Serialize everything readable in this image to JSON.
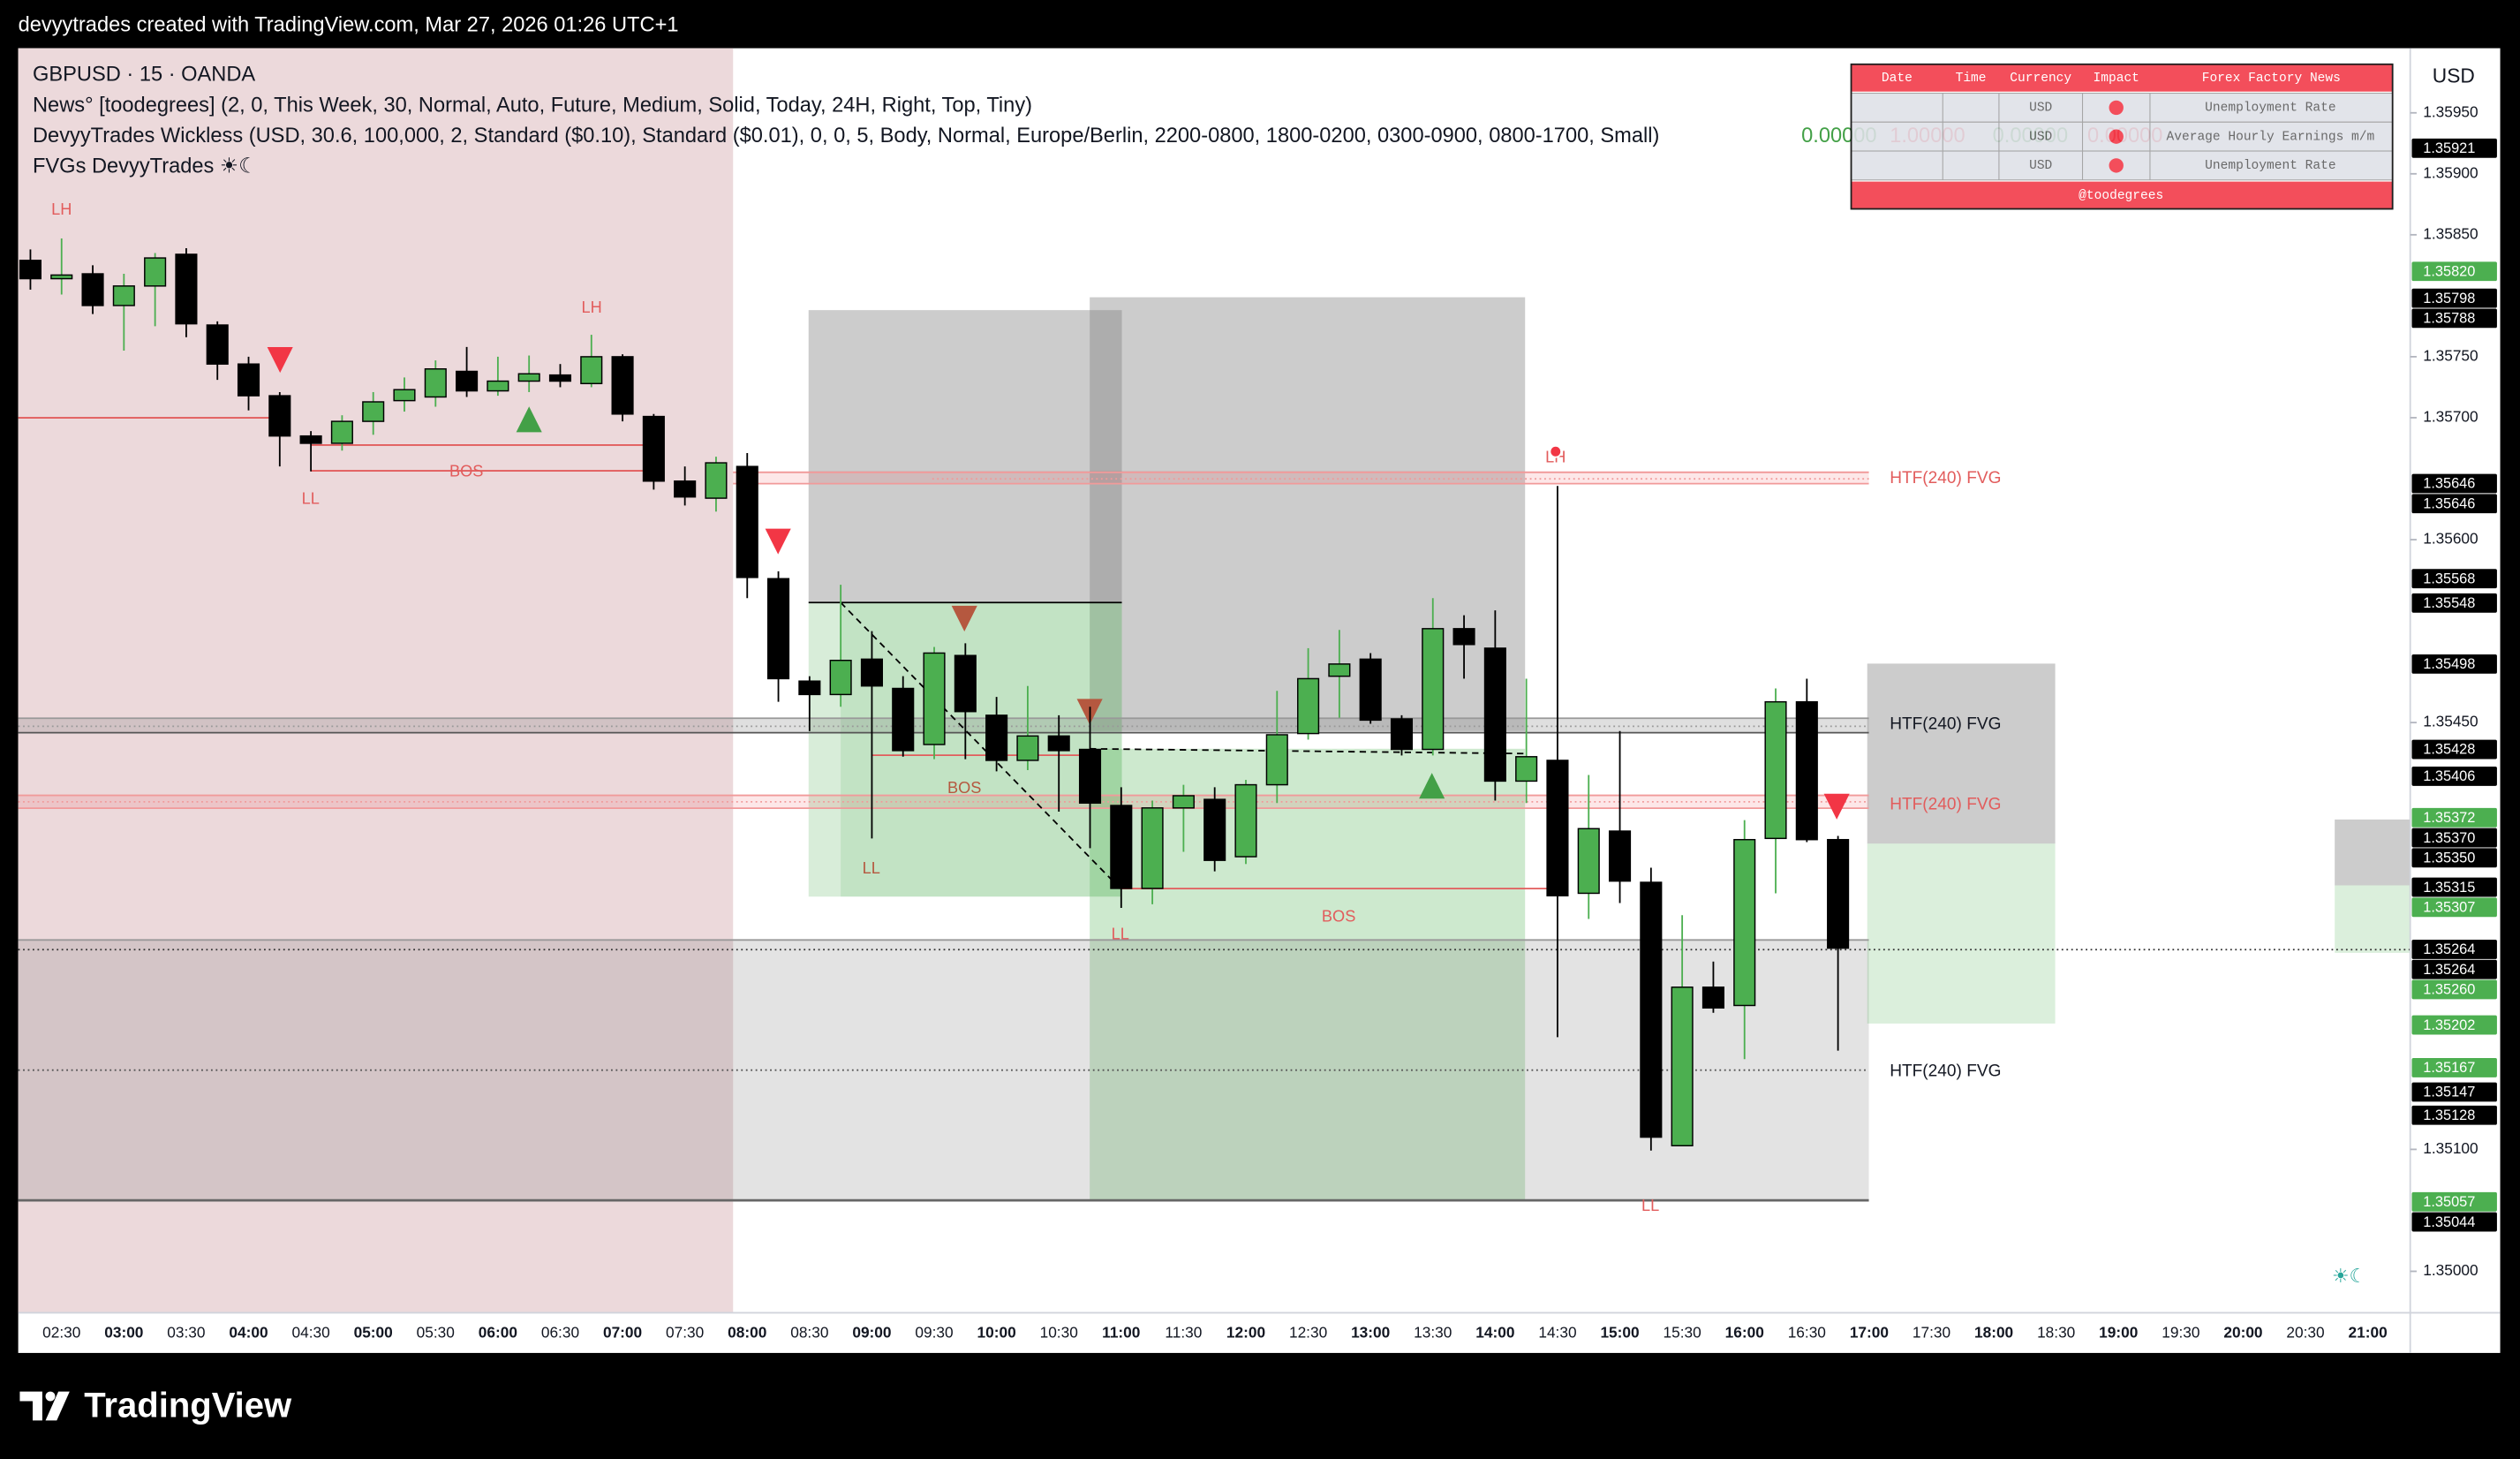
{
  "chart_data": {
    "type": "candlestick",
    "header": "devyytrades created with TradingView.com, Mar 27, 2026 01:26 UTC+1",
    "title": "GBPUSD · 15 · OANDA",
    "indicators": [
      "News° [toodegrees] (2, 0, This Week, 30, Normal, Auto, Future, Medium, Solid, Today, 24H, Right, Top, Tiny)",
      "DevyyTrades Wickless (USD, 30.6, 100,000, 2, Standard ($0.10), Standard ($0.01), 0, 0, 5, Body, Normal, Europe/Berlin, 2200-0800, 1800-0200, 0300-0900, 0800-1700, Small)",
      "FVGs DevyyTrades ☀☾"
    ],
    "indicator_values": [
      "0.00000",
      "1.00000",
      "0.00000",
      "0.00000"
    ],
    "currency": "USD",
    "ylim": [
      1.34966,
      1.36003
    ],
    "yticks": [
      {
        "value": 1.3595,
        "label": "1.35950"
      },
      {
        "value": 1.359,
        "label": "1.35900"
      },
      {
        "value": 1.3585,
        "label": "1.35850"
      },
      {
        "value": 1.3575,
        "label": "1.35750"
      },
      {
        "value": 1.357,
        "label": "1.35700"
      },
      {
        "value": 1.356,
        "label": "1.35600"
      },
      {
        "value": 1.3545,
        "label": "1.35450"
      },
      {
        "value": 1.351,
        "label": "1.35100"
      },
      {
        "value": 1.35,
        "label": "1.35000"
      }
    ],
    "xticks": [
      "02:30",
      "03:00",
      "03:30",
      "04:00",
      "04:30",
      "05:00",
      "05:30",
      "06:00",
      "06:30",
      "07:00",
      "07:30",
      "08:00",
      "08:30",
      "09:00",
      "09:30",
      "10:00",
      "10:30",
      "11:00",
      "11:30",
      "12:00",
      "12:30",
      "13:00",
      "13:30",
      "14:00",
      "14:30",
      "15:00",
      "15:30",
      "16:00",
      "16:30",
      "17:00",
      "17:30",
      "18:00",
      "18:30",
      "19:00",
      "19:30",
      "20:00",
      "20:30",
      "21:00"
    ],
    "open": [
      1.35829,
      1.35814,
      1.35818,
      1.35792,
      1.35808,
      1.35834,
      1.35776,
      1.35744,
      1.35718,
      1.35685,
      1.35679,
      1.35697,
      1.35714,
      1.35717,
      1.35738,
      1.35722,
      1.3573,
      1.35735,
      1.35728,
      1.3575,
      1.35701,
      1.35648,
      1.35634,
      1.3566,
      1.35568,
      1.35484,
      1.35473,
      1.35502,
      1.35478,
      1.35432,
      1.35505,
      1.35456,
      1.35419,
      1.35439,
      1.35428,
      1.35382,
      1.35314,
      1.3538,
      1.35387,
      1.3534,
      1.35399,
      1.35441,
      1.35488,
      1.35502,
      1.35453,
      1.35428,
      1.35527,
      1.35511,
      1.35402,
      1.35419,
      1.3531,
      1.35361,
      1.35319,
      1.35103,
      1.35233,
      1.35218,
      1.35355,
      1.35467,
      1.35354
    ],
    "high": [
      1.35838,
      1.35847,
      1.35825,
      1.35818,
      1.35835,
      1.35839,
      1.35779,
      1.3575,
      1.35721,
      1.35689,
      1.35702,
      1.35721,
      1.35733,
      1.35747,
      1.35758,
      1.3575,
      1.35751,
      1.35744,
      1.35768,
      1.35752,
      1.35703,
      1.3566,
      1.35668,
      1.35671,
      1.35574,
      1.35488,
      1.35563,
      1.35525,
      1.35488,
      1.35512,
      1.35515,
      1.35471,
      1.3548,
      1.35456,
      1.35463,
      1.35397,
      1.35386,
      1.35399,
      1.35397,
      1.35403,
      1.35476,
      1.35511,
      1.35526,
      1.35507,
      1.35456,
      1.35552,
      1.35538,
      1.35542,
      1.35486,
      1.35644,
      1.35407,
      1.35443,
      1.35331,
      1.35292,
      1.35254,
      1.3537,
      1.35478,
      1.35486,
      1.35357
    ],
    "low": [
      1.35805,
      1.35801,
      1.35785,
      1.35755,
      1.35775,
      1.35766,
      1.35731,
      1.35706,
      1.3566,
      1.35656,
      1.35673,
      1.35686,
      1.35705,
      1.35709,
      1.35717,
      1.35718,
      1.35721,
      1.35725,
      1.35725,
      1.35697,
      1.35641,
      1.35628,
      1.35623,
      1.35552,
      1.35467,
      1.35443,
      1.35463,
      1.35355,
      1.35422,
      1.3542,
      1.3542,
      1.3541,
      1.35411,
      1.35377,
      1.35347,
      1.35298,
      1.35301,
      1.35344,
      1.35328,
      1.35334,
      1.35384,
      1.35436,
      1.35454,
      1.35449,
      1.35423,
      1.35423,
      1.35486,
      1.35386,
      1.35384,
      1.35192,
      1.35289,
      1.35302,
      1.35099,
      1.35103,
      1.35212,
      1.35174,
      1.3531,
      1.35352,
      1.35181
    ],
    "close": [
      1.35814,
      1.35817,
      1.35792,
      1.35808,
      1.35831,
      1.35777,
      1.35744,
      1.35718,
      1.35685,
      1.35679,
      1.35697,
      1.35713,
      1.35723,
      1.3574,
      1.35722,
      1.3573,
      1.35736,
      1.3573,
      1.3575,
      1.35703,
      1.35648,
      1.35635,
      1.35663,
      1.35569,
      1.35486,
      1.35473,
      1.35501,
      1.3548,
      1.35427,
      1.35507,
      1.35459,
      1.35419,
      1.35439,
      1.35427,
      1.35384,
      1.35314,
      1.3538,
      1.3539,
      1.35337,
      1.35399,
      1.3544,
      1.35486,
      1.35498,
      1.35452,
      1.35428,
      1.35527,
      1.35514,
      1.35402,
      1.35422,
      1.35308,
      1.35363,
      1.3532,
      1.3511,
      1.35233,
      1.35216,
      1.35354,
      1.35467,
      1.35354,
      1.35265
    ],
    "up_color": "#4caf50",
    "down_color": "#000000",
    "price_tags": {
      "values": [
        1.35921,
        1.3582,
        1.35798,
        1.35788,
        1.35646,
        1.35646,
        1.35568,
        1.35548,
        1.35498,
        1.35428,
        1.35406,
        1.35372,
        1.3537,
        1.3535,
        1.35315,
        1.35307,
        1.35264,
        1.35264,
        1.3526,
        1.35202,
        1.35167,
        1.35147,
        1.35128,
        1.35057,
        1.35044
      ],
      "value_labels": [
        "1.35921",
        "1.35820",
        "1.35798",
        "1.35788",
        "1.35646",
        "1.35646",
        "1.35568",
        "1.35548",
        "1.35498",
        "1.35428",
        "1.35406",
        "1.35372",
        "1.35370",
        "1.35350",
        "1.35315",
        "1.35307",
        "1.35264",
        "1.35264",
        "1.35260",
        "1.35202",
        "1.35167",
        "1.35147",
        "1.35128",
        "1.35057",
        "1.35044"
      ],
      "colors": [
        "#000000",
        "#4caf50",
        "#000000",
        "#000000",
        "#000000",
        "#000000",
        "#000000",
        "#000000",
        "#000000",
        "#000000",
        "#000000",
        "#4caf50",
        "#000000",
        "#000000",
        "#000000",
        "#4caf50",
        "#000000",
        "#000000",
        "#4caf50",
        "#4caf50",
        "#4caf50",
        "#000000",
        "#000000",
        "#4caf50",
        "#000000"
      ]
    },
    "annotations": [
      "LH",
      "LH",
      "LL",
      "BOS",
      "BOS",
      "LL",
      "LL",
      "BOS",
      "LH",
      "LL",
      "HTF(240) FVG",
      "HTF(240) FVG",
      "HTF(240) FVG",
      "HTF(240) FVG"
    ],
    "news_table": {
      "headers": [
        "Date",
        "Time",
        "Currency",
        "Impact",
        "Forex Factory News"
      ],
      "rows": [
        {
          "currency": "USD",
          "event": "Unemployment Rate"
        },
        {
          "currency": "USD",
          "event": "Average Hourly Earnings m/m"
        },
        {
          "currency": "USD",
          "event": "Unemployment Rate"
        }
      ],
      "footer": "@toodegrees"
    }
  },
  "brand": "TradingView"
}
